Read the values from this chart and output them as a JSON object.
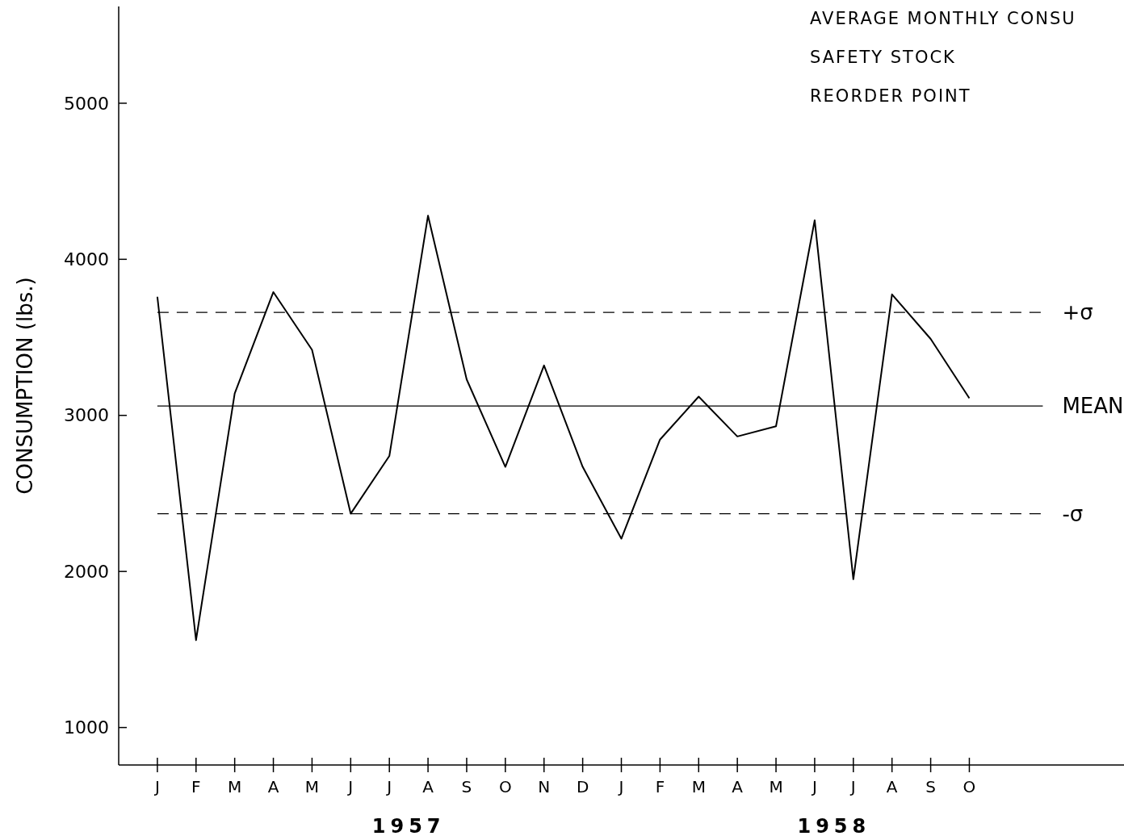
{
  "chart_data": {
    "type": "line",
    "ylabel": "CONSUMPTION (lbs.)",
    "categories": [
      "J",
      "F",
      "M",
      "A",
      "M",
      "J",
      "J",
      "A",
      "S",
      "O",
      "N",
      "D",
      "J",
      "F",
      "M",
      "A",
      "M",
      "J",
      "J",
      "A",
      "S",
      "O"
    ],
    "series": [
      {
        "color": "#000000",
        "values": [
          3760,
          1560,
          3140,
          3790,
          3420,
          2370,
          2740,
          4280,
          3230,
          2670,
          3320,
          2670,
          2210,
          2845,
          3120,
          2865,
          2930,
          4250,
          1950,
          3775,
          3490,
          3110
        ]
      }
    ],
    "ylim": [
      760,
      5620
    ],
    "yticks": [
      {
        "value": 1000,
        "label": "1000"
      },
      2000,
      3000,
      4000,
      5000
    ],
    "grid": false,
    "marker": "none",
    "line_style": "solid",
    "ref_lines": [
      {
        "axis": "y",
        "value": 3660,
        "label": "+σ",
        "line_style": "dashed"
      },
      {
        "axis": "y",
        "value": 3060,
        "label": "MEAN",
        "line_style": "solid"
      },
      {
        "axis": "y",
        "value": 2370,
        "label": "-σ",
        "line_style": "dashed"
      }
    ],
    "annotations": [
      "AVERAGE MONTHLY CONSU",
      "SAFETY  STOCK",
      "REORDER  POINT",
      "1957",
      "1958"
    ]
  }
}
